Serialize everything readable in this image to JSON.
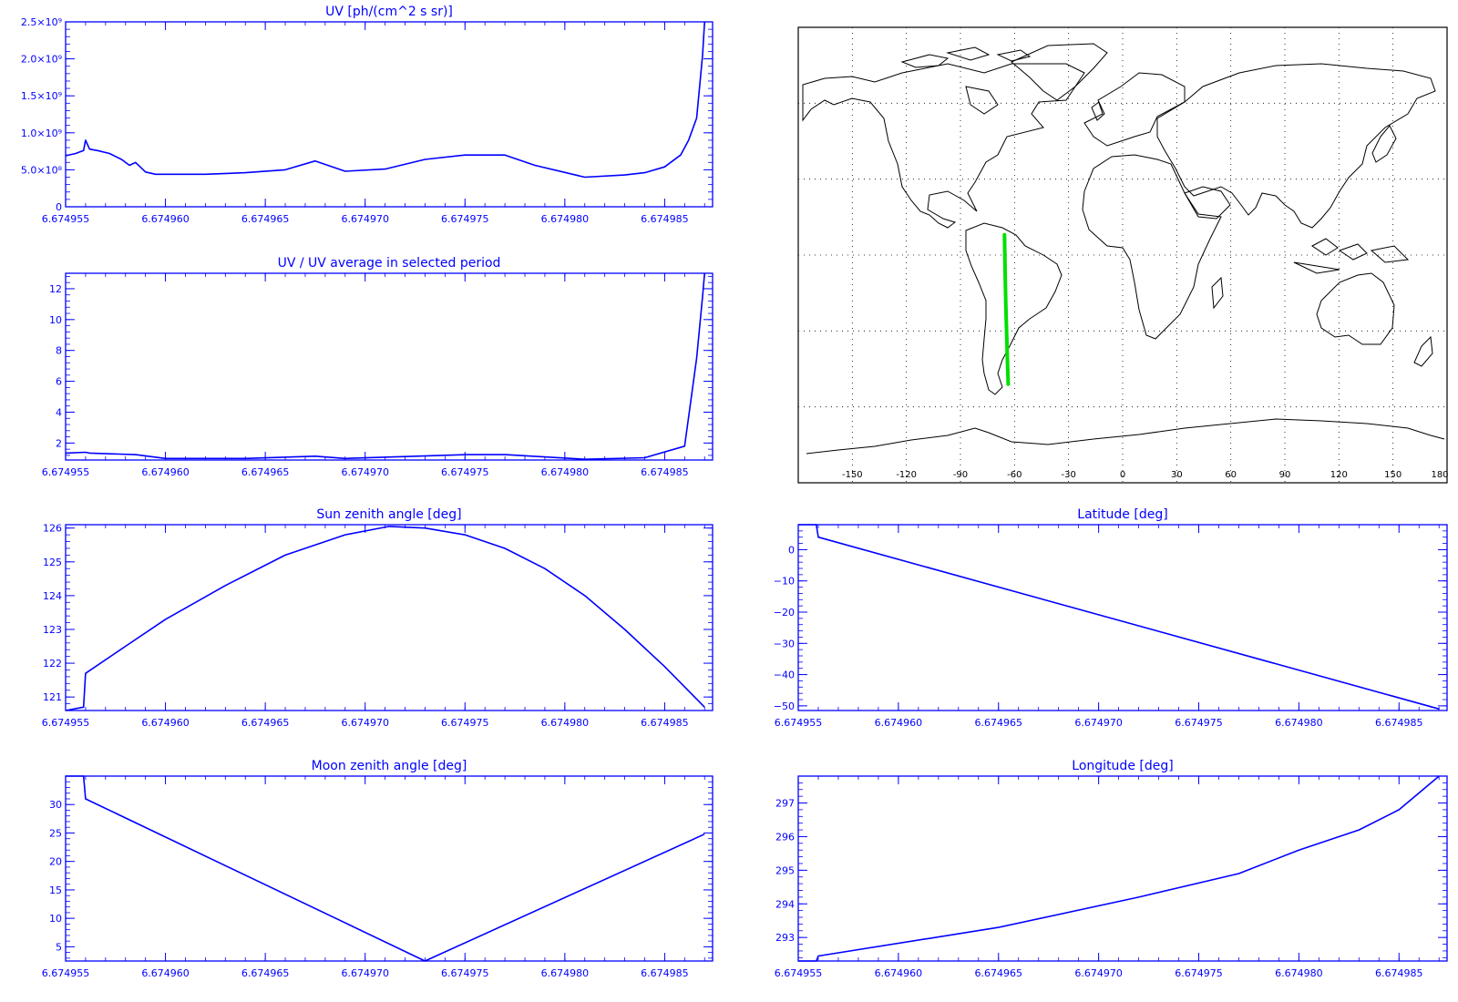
{
  "colors": {
    "axis": "#0000ff",
    "series": "#0000ff",
    "track": "#00e000",
    "map_frame": "#000000",
    "coast": "#000000",
    "grid": "#000000"
  },
  "x_axis_shared": {
    "range": [
      6.674955,
      6.6749874
    ],
    "ticks": [
      6.674955,
      6.67496,
      6.674965,
      6.67497,
      6.674975,
      6.67498,
      6.674985
    ],
    "tick_labels": [
      "6.674955",
      "6.674960",
      "6.674965",
      "6.674970",
      "6.674975",
      "6.674980",
      "6.674985"
    ]
  },
  "chart_data": [
    {
      "id": "uv",
      "type": "line",
      "title": "UV [ph/(cm^2 s sr)]",
      "xlabel": "",
      "ylabel": "",
      "ylim": [
        0,
        2500000000
      ],
      "yticks": [
        0,
        500000000,
        1000000000,
        1500000000,
        2000000000,
        2500000000
      ],
      "ytick_labels": [
        "0",
        "5.0×10⁸",
        "1.0×10⁹",
        "1.5×10⁹",
        "2.0×10⁹",
        "2.5×10⁹"
      ],
      "series": [
        {
          "x": [
            6.674955,
            6.6749555,
            6.6749559,
            6.674956,
            6.6749562,
            6.6749566,
            6.6749572,
            6.6749578,
            6.6749582,
            6.6749585,
            6.674959,
            6.6749595,
            6.67496,
            6.674962,
            6.674964,
            6.674966,
            6.6749675,
            6.674969,
            6.674971,
            6.674973,
            6.674975,
            6.674977,
            6.6749785,
            6.674981,
            6.674983,
            6.674984,
            6.674985,
            6.6749858,
            6.6749862,
            6.6749866,
            6.6749869,
            6.674987
          ],
          "y": [
            690000000,
            720000000,
            760000000,
            900000000,
            780000000,
            760000000,
            720000000,
            640000000,
            560000000,
            600000000,
            470000000,
            440000000,
            440000000,
            440000000,
            460000000,
            500000000,
            620000000,
            480000000,
            510000000,
            640000000,
            700000000,
            700000000,
            560000000,
            400000000,
            430000000,
            460000000,
            540000000,
            700000000,
            900000000,
            1200000000,
            2050000000,
            2500000000
          ]
        }
      ]
    },
    {
      "id": "uv_ratio",
      "type": "line",
      "title": "UV / UV average in selected period",
      "xlabel": "",
      "ylabel": "",
      "ylim": [
        0.9,
        13
      ],
      "yticks": [
        2,
        4,
        6,
        8,
        10,
        12
      ],
      "ytick_labels": [
        "2",
        "4",
        "6",
        "8",
        "10",
        "12"
      ],
      "series": [
        {
          "x": [
            6.674955,
            6.674956,
            6.6749562,
            6.6749585,
            6.67496,
            6.674964,
            6.6749675,
            6.674969,
            6.674975,
            6.674977,
            6.674981,
            6.674984,
            6.674986,
            6.6749866,
            6.6749869,
            6.674987
          ],
          "y": [
            1.35,
            1.4,
            1.35,
            1.25,
            1.0,
            1.0,
            1.15,
            1.0,
            1.25,
            1.25,
            0.95,
            1.05,
            1.8,
            7.5,
            11.5,
            13
          ]
        }
      ]
    },
    {
      "id": "sun_zenith",
      "type": "line",
      "title": "Sun zenith angle [deg]",
      "xlabel": "",
      "ylabel": "",
      "ylim": [
        120.6,
        126.1
      ],
      "yticks": [
        121,
        122,
        123,
        124,
        125,
        126
      ],
      "ytick_labels": [
        "121",
        "122",
        "123",
        "124",
        "125",
        "126"
      ],
      "series": [
        {
          "x": [
            6.674955,
            6.6749559,
            6.674956,
            6.674958,
            6.67496,
            6.674963,
            6.674966,
            6.674969,
            6.6749712,
            6.674973,
            6.674975,
            6.674977,
            6.674979,
            6.674981,
            6.674983,
            6.674985,
            6.674987
          ],
          "y": [
            120.6,
            120.7,
            121.7,
            122.5,
            123.3,
            124.3,
            125.2,
            125.8,
            126.05,
            126.0,
            125.8,
            125.4,
            124.8,
            124.0,
            123.0,
            121.9,
            120.7
          ]
        }
      ]
    },
    {
      "id": "latitude",
      "type": "line",
      "title": "Latitude [deg]",
      "xlabel": "",
      "ylabel": "",
      "ylim": [
        -51.5,
        8
      ],
      "yticks": [
        0,
        -10,
        -20,
        -30,
        -40,
        -50
      ],
      "ytick_labels": [
        "0",
        "−10",
        "−20",
        "−30",
        "−40",
        "−50"
      ],
      "series": [
        {
          "x": [
            6.674955,
            6.6749559,
            6.674956,
            6.674987
          ],
          "y": [
            8,
            8,
            4,
            -51
          ]
        }
      ]
    },
    {
      "id": "moon_zenith",
      "type": "line",
      "title": "Moon zenith angle [deg]",
      "xlabel": "",
      "ylabel": "",
      "ylim": [
        2.5,
        35
      ],
      "yticks": [
        5,
        10,
        15,
        20,
        25,
        30
      ],
      "ytick_labels": [
        "5",
        "10",
        "15",
        "20",
        "25",
        "30"
      ],
      "series": [
        {
          "x": [
            6.674955,
            6.6749559,
            6.674956,
            6.674973,
            6.674987
          ],
          "y": [
            35,
            35,
            31,
            2.5,
            24.8
          ]
        }
      ]
    },
    {
      "id": "longitude",
      "type": "line",
      "title": "Longitude [deg]",
      "xlabel": "",
      "ylabel": "",
      "ylim": [
        292.3,
        297.8
      ],
      "yticks": [
        293,
        294,
        295,
        296,
        297
      ],
      "ytick_labels": [
        "293",
        "294",
        "295",
        "296",
        "297"
      ],
      "series": [
        {
          "x": [
            6.674955,
            6.6749559,
            6.674956,
            6.674965,
            6.674972,
            6.674977,
            6.67498,
            6.674983,
            6.674985,
            6.674986,
            6.674987
          ],
          "y": [
            292.3,
            292.3,
            292.45,
            293.3,
            294.2,
            294.9,
            295.6,
            296.2,
            296.8,
            297.3,
            297.8
          ]
        }
      ]
    },
    {
      "id": "ground_track",
      "type": "scatter",
      "title": "",
      "xlabel": "",
      "ylabel": "",
      "xlim": [
        -180,
        180
      ],
      "ylim": [
        -90,
        90
      ],
      "xticks": [
        -150,
        -120,
        -90,
        -60,
        -30,
        0,
        30,
        60,
        90,
        120,
        150,
        180
      ],
      "xtick_labels": [
        "-150",
        "-120",
        "-90",
        "-60",
        "-30",
        "0",
        "30",
        "60",
        "90",
        "120",
        "150",
        "180"
      ],
      "grid": true,
      "series": [
        {
          "x": [
            -65.6,
            -65.4,
            -65.1,
            -64.8,
            -64.4,
            -64.0,
            -63.5
          ],
          "y": [
            8,
            0,
            -10,
            -20,
            -30,
            -40,
            -51
          ]
        }
      ]
    }
  ]
}
